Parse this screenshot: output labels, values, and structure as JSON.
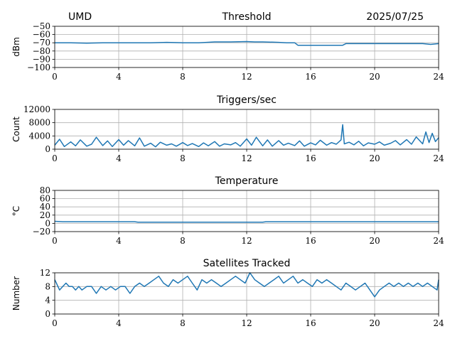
{
  "header": {
    "station": "UMD",
    "date": "2025/07/25"
  },
  "colors": {
    "series": "#1f77b4",
    "grid": "#b0b0b0"
  },
  "chart_data": [
    {
      "type": "line",
      "title": "Threshold",
      "ylabel": "dBm",
      "xlim": [
        0,
        24
      ],
      "ylim": [
        -100,
        -50
      ],
      "xticks": [
        0,
        4,
        8,
        12,
        16,
        20,
        24
      ],
      "yticks": [
        -100,
        -90,
        -80,
        -70,
        -60,
        -50
      ],
      "ytick_labels": [
        "−100",
        "−90",
        "−80",
        "−70",
        "−60",
        "−50"
      ],
      "grid": true,
      "series": [
        {
          "x": [
            0,
            1,
            2,
            3,
            4,
            5,
            6,
            7,
            8,
            9,
            10,
            11,
            12,
            12.5,
            13,
            14,
            14.5,
            15,
            15.2,
            16,
            17,
            18,
            18.2,
            19,
            20,
            21,
            22,
            23,
            23.5,
            24
          ],
          "values": [
            -70,
            -70,
            -70.5,
            -70,
            -70,
            -70,
            -70,
            -69.5,
            -70,
            -70,
            -69,
            -69,
            -68.5,
            -69,
            -69,
            -69.5,
            -70,
            -70,
            -73,
            -73,
            -73,
            -73,
            -71,
            -71,
            -71,
            -71,
            -71,
            -71,
            -72,
            -71
          ]
        }
      ]
    },
    {
      "type": "line",
      "title": "Triggers/sec",
      "ylabel": "Count",
      "xlim": [
        0,
        24
      ],
      "ylim": [
        0,
        12000
      ],
      "xticks": [
        0,
        4,
        8,
        12,
        16,
        20,
        24
      ],
      "yticks": [
        0,
        4000,
        8000,
        12000
      ],
      "ytick_labels": [
        "0",
        "4000",
        "8000",
        "12000"
      ],
      "grid": true,
      "series": [
        {
          "x": [
            0,
            0.3,
            0.6,
            1,
            1.3,
            1.6,
            2,
            2.3,
            2.6,
            3,
            3.3,
            3.6,
            4,
            4.3,
            4.6,
            5,
            5.3,
            5.6,
            6,
            6.3,
            6.6,
            7,
            7.3,
            7.6,
            8,
            8.3,
            8.6,
            9,
            9.3,
            9.6,
            10,
            10.3,
            10.6,
            11,
            11.3,
            11.6,
            12,
            12.3,
            12.6,
            13,
            13.3,
            13.6,
            14,
            14.3,
            14.6,
            15,
            15.3,
            15.6,
            16,
            16.3,
            16.6,
            17,
            17.3,
            17.6,
            17.9,
            18,
            18.1,
            18.4,
            18.7,
            19,
            19.3,
            19.6,
            20,
            20.3,
            20.6,
            21,
            21.3,
            21.6,
            22,
            22.3,
            22.6,
            23,
            23.2,
            23.4,
            23.6,
            23.8,
            24
          ],
          "values": [
            1200,
            3000,
            800,
            2200,
            1000,
            2800,
            900,
            1500,
            3600,
            1100,
            2500,
            800,
            2900,
            1200,
            2600,
            1000,
            3400,
            900,
            1800,
            700,
            2100,
            1200,
            1600,
            900,
            2000,
            1100,
            1700,
            800,
            1900,
            1000,
            2300,
            900,
            1600,
            1300,
            2000,
            900,
            3100,
            1200,
            3600,
            1000,
            2800,
            900,
            2600,
            1200,
            1800,
            1100,
            2500,
            900,
            1900,
            1300,
            2700,
            1200,
            2000,
            1500,
            2800,
            7400,
            1600,
            2100,
            1300,
            2400,
            1000,
            1900,
            1500,
            2200,
            1200,
            1800,
            2600,
            1300,
            2900,
            1500,
            3700,
            1600,
            5200,
            2000,
            4800,
            2300,
            3500
          ]
        }
      ]
    },
    {
      "type": "line",
      "title": "Temperature",
      "ylabel": "°C",
      "xlim": [
        0,
        24
      ],
      "ylim": [
        -20,
        80
      ],
      "xticks": [
        0,
        4,
        8,
        12,
        16,
        20,
        24
      ],
      "yticks": [
        -20,
        0,
        20,
        40,
        60,
        80
      ],
      "ytick_labels": [
        "−20",
        "0",
        "20",
        "40",
        "60",
        "80"
      ],
      "grid": true,
      "series": [
        {
          "x": [
            0,
            0.5,
            1,
            2,
            3,
            4,
            5,
            5.2,
            6,
            8,
            10,
            12,
            13,
            13.2,
            16,
            20,
            24
          ],
          "values": [
            5,
            4,
            4,
            4,
            4,
            4,
            4,
            3,
            3,
            3,
            3,
            3,
            3,
            4,
            4,
            4,
            4
          ]
        }
      ]
    },
    {
      "type": "line",
      "title": "Satellites Tracked",
      "ylabel": "Number",
      "xlim": [
        0,
        24
      ],
      "ylim": [
        0,
        12
      ],
      "xticks": [
        0,
        4,
        8,
        12,
        16,
        20,
        24
      ],
      "yticks": [
        0,
        4,
        8,
        12
      ],
      "ytick_labels": [
        "0",
        "4",
        "8",
        "12"
      ],
      "grid": true,
      "series": [
        {
          "x": [
            0,
            0.1,
            0.2,
            0.3,
            0.5,
            0.7,
            0.9,
            1.1,
            1.3,
            1.5,
            1.7,
            2.0,
            2.3,
            2.6,
            2.9,
            3.2,
            3.5,
            3.8,
            4.1,
            4.4,
            4.7,
            5.0,
            5.3,
            5.6,
            5.9,
            6.2,
            6.5,
            6.8,
            7.1,
            7.4,
            7.7,
            8.0,
            8.3,
            8.6,
            8.9,
            9.2,
            9.5,
            9.8,
            10.1,
            10.4,
            10.7,
            11.0,
            11.3,
            11.6,
            11.9,
            12.2,
            12.5,
            12.8,
            13.1,
            13.4,
            13.7,
            14.0,
            14.3,
            14.6,
            14.9,
            15.2,
            15.5,
            15.8,
            16.1,
            16.4,
            16.7,
            17.0,
            17.3,
            17.6,
            17.9,
            18.2,
            18.5,
            18.8,
            19.1,
            19.4,
            19.7,
            20.0,
            20.3,
            20.6,
            20.9,
            21.2,
            21.5,
            21.8,
            22.1,
            22.4,
            22.7,
            23.0,
            23.3,
            23.6,
            23.9,
            24
          ],
          "values": [
            10,
            9,
            8,
            7,
            8,
            9,
            8,
            8,
            7,
            8,
            7,
            8,
            8,
            6,
            8,
            7,
            8,
            7,
            8,
            8,
            6,
            8,
            9,
            8,
            9,
            10,
            11,
            9,
            8,
            10,
            9,
            10,
            11,
            9,
            7,
            10,
            9,
            10,
            9,
            8,
            9,
            10,
            11,
            10,
            9,
            12,
            10,
            9,
            8,
            9,
            10,
            11,
            9,
            10,
            11,
            9,
            10,
            9,
            8,
            10,
            9,
            10,
            9,
            8,
            7,
            9,
            8,
            7,
            8,
            9,
            7,
            5,
            7,
            8,
            9,
            8,
            9,
            8,
            9,
            8,
            9,
            8,
            9,
            8,
            7,
            10
          ]
        }
      ]
    }
  ]
}
